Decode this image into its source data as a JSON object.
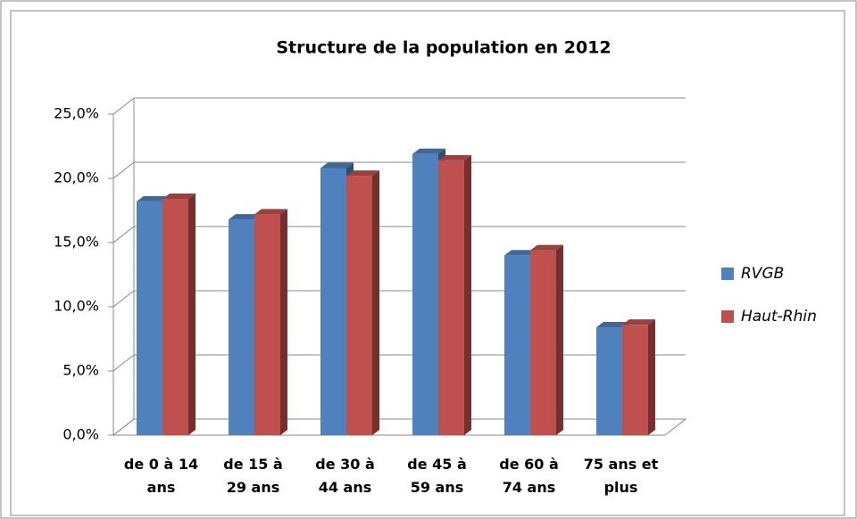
{
  "chart_data": {
    "type": "bar3d",
    "title": "Structure de la population en 2012",
    "categories": [
      "de 0 à 14 ans",
      "de 15 à 29 ans",
      "de 30 à 44 ans",
      "de 45 à 59 ans",
      "de 60 à 74 ans",
      "75 ans et plus"
    ],
    "series": [
      {
        "name": "RVGB",
        "color": "#4f81bd",
        "values": [
          18.2,
          16.8,
          20.8,
          21.9,
          14.0,
          8.4
        ]
      },
      {
        "name": "Haut-Rhin",
        "color": "#c0504d",
        "values": [
          18.4,
          17.2,
          20.2,
          21.4,
          14.4,
          8.6
        ]
      }
    ],
    "ylim": [
      0,
      25
    ],
    "yticks": [
      {
        "value": 0,
        "label": "0,0%"
      },
      {
        "value": 5,
        "label": "5,0%"
      },
      {
        "value": 10,
        "label": "10,0%"
      },
      {
        "value": 15,
        "label": "15,0%"
      },
      {
        "value": 20,
        "label": "20,0%"
      },
      {
        "value": 25,
        "label": "25,0%"
      }
    ],
    "grid": true,
    "legend": "right"
  }
}
